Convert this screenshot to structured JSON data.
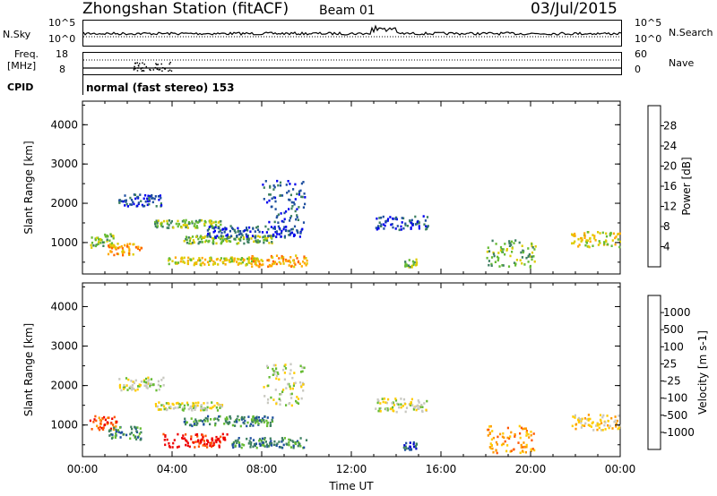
{
  "header": {
    "station": "Zhongshan Station (fitACF)",
    "beam": "Beam 01",
    "date": "03/Jul/2015"
  },
  "top_panels": {
    "nsky_label": "N.Sky",
    "nsearch_label": "N.Search",
    "noise_left_top": "10^5",
    "noise_left_bottom": "10^0",
    "noise_right_top": "10^5",
    "noise_right_bottom": "10^0",
    "freq_label": "Freq.",
    "freq_unit": "[MHz]",
    "freq_top": "18",
    "freq_bottom": "8",
    "nave_label": "Nave",
    "nave_top": "60",
    "nave_bottom": "0",
    "cpid_label": "CPID",
    "cpid_value": "normal (fast stereo) 153"
  },
  "colors": {
    "power_scale": [
      "#0000ee",
      "#1f4f9f",
      "#3d8060",
      "#66bb33",
      "#ddcc00",
      "#ffaa00",
      "#ff6600",
      "#ee0000"
    ],
    "velocity_scale": [
      "#ee0000",
      "#ff5500",
      "#ff9900",
      "#ffcc00",
      "#c8c8c0",
      "#66bb33",
      "#3d8060",
      "#1f4f9f",
      "#0000cc"
    ]
  },
  "chart_data": [
    {
      "type": "heatmap",
      "panel": "power",
      "ylabel": "Slant Range [km]",
      "colorbar_label": "Power [dB]",
      "colorbar_ticks": [
        "4",
        "8",
        "12",
        "16",
        "20",
        "24",
        "28"
      ],
      "yticks": [
        "1000",
        "2000",
        "3000",
        "4000"
      ],
      "ylim": [
        200,
        4600
      ],
      "xlim_hours": [
        0,
        24
      ],
      "blobs": [
        {
          "t0": 0.3,
          "t1": 1.5,
          "r0": 900,
          "r1": 1250,
          "level": 3
        },
        {
          "t0": 1.1,
          "t1": 2.6,
          "r0": 700,
          "r1": 1000,
          "level": 5
        },
        {
          "t0": 1.6,
          "t1": 3.6,
          "r0": 1950,
          "r1": 2250,
          "level": 1
        },
        {
          "t0": 3.2,
          "t1": 6.2,
          "r0": 1400,
          "r1": 1600,
          "level": 3
        },
        {
          "t0": 4.5,
          "t1": 8.5,
          "r0": 1000,
          "r1": 1200,
          "level": 3
        },
        {
          "t0": 3.8,
          "t1": 7.8,
          "r0": 450,
          "r1": 650,
          "level": 4
        },
        {
          "t0": 5.5,
          "t1": 9.8,
          "r0": 1150,
          "r1": 1450,
          "level": 1
        },
        {
          "t0": 8.0,
          "t1": 9.9,
          "r0": 1500,
          "r1": 2600,
          "level": 1
        },
        {
          "t0": 7.5,
          "t1": 10.0,
          "r0": 400,
          "r1": 700,
          "level": 5
        },
        {
          "t0": 13.0,
          "t1": 15.4,
          "r0": 1350,
          "r1": 1700,
          "level": 1
        },
        {
          "t0": 14.3,
          "t1": 14.9,
          "r0": 400,
          "r1": 600,
          "level": 3
        },
        {
          "t0": 18.0,
          "t1": 20.2,
          "r0": 400,
          "r1": 1100,
          "level": 3
        },
        {
          "t0": 21.8,
          "t1": 24.0,
          "r0": 900,
          "r1": 1300,
          "level": 4
        }
      ]
    },
    {
      "type": "heatmap",
      "panel": "velocity",
      "ylabel": "Slant Range [km]",
      "xlabel": "Time UT",
      "colorbar_label": "Velocity [m s-1]",
      "colorbar_ticks": [
        "-1000",
        "-500",
        "-100",
        "-25",
        "25",
        "100",
        "500",
        "1000"
      ],
      "yticks": [
        "1000",
        "2000",
        "3000",
        "4000"
      ],
      "xticks": [
        "00:00",
        "04:00",
        "08:00",
        "12:00",
        "16:00",
        "20:00",
        "00:00"
      ],
      "ylim": [
        200,
        4600
      ],
      "xlim_hours": [
        0,
        24
      ],
      "blobs": [
        {
          "t0": 0.3,
          "t1": 1.5,
          "r0": 900,
          "r1": 1250,
          "level": 1
        },
        {
          "t0": 1.1,
          "t1": 2.6,
          "r0": 650,
          "r1": 1000,
          "level": 6
        },
        {
          "t0": 1.6,
          "t1": 3.6,
          "r0": 1900,
          "r1": 2250,
          "level": 4
        },
        {
          "t0": 3.2,
          "t1": 6.2,
          "r0": 1400,
          "r1": 1600,
          "level": 4
        },
        {
          "t0": 3.5,
          "t1": 6.5,
          "r0": 450,
          "r1": 800,
          "level": 0
        },
        {
          "t0": 4.5,
          "t1": 8.5,
          "r0": 1000,
          "r1": 1250,
          "level": 6
        },
        {
          "t0": 6.5,
          "t1": 10.0,
          "r0": 450,
          "r1": 700,
          "level": 6
        },
        {
          "t0": 8.0,
          "t1": 9.9,
          "r0": 1500,
          "r1": 2600,
          "level": 4
        },
        {
          "t0": 13.0,
          "t1": 15.4,
          "r0": 1350,
          "r1": 1700,
          "level": 4
        },
        {
          "t0": 14.3,
          "t1": 14.9,
          "r0": 400,
          "r1": 600,
          "level": 7
        },
        {
          "t0": 18.0,
          "t1": 20.2,
          "r0": 300,
          "r1": 1000,
          "level": 2
        },
        {
          "t0": 21.8,
          "t1": 24.0,
          "r0": 900,
          "r1": 1300,
          "level": 3
        }
      ]
    }
  ]
}
